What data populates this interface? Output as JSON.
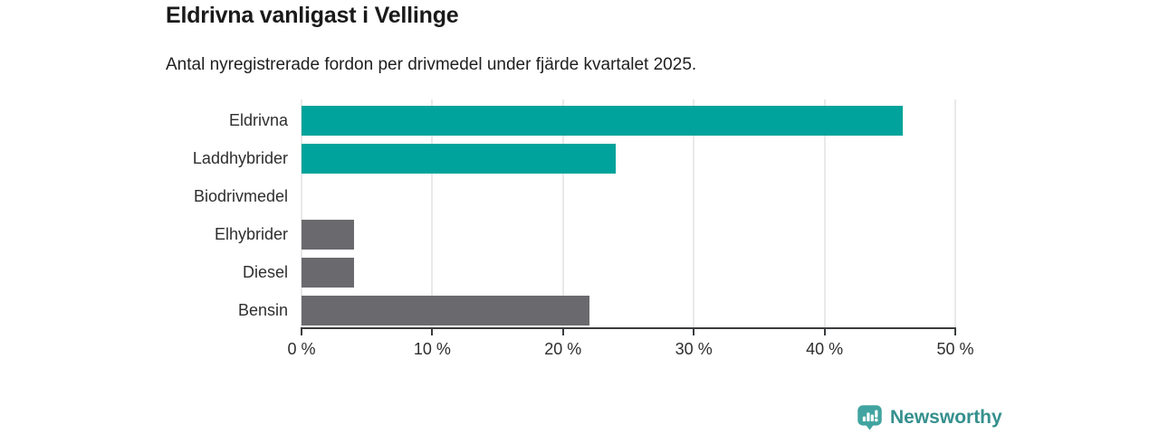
{
  "chart_data": {
    "type": "bar",
    "orientation": "horizontal",
    "title": "Eldrivna vanligast i Vellinge",
    "subtitle": "Antal nyregistrerade fordon per drivmedel under fjärde kvartalet 2025.",
    "categories": [
      "Eldrivna",
      "Laddhybrider",
      "Biodrivmedel",
      "Elhybrider",
      "Diesel",
      "Bensin"
    ],
    "values": [
      46,
      24,
      0,
      4,
      4,
      22
    ],
    "unit": "%",
    "bar_colors": [
      "#00a39b",
      "#00a39b",
      "#00a39b",
      "#6a6a6e",
      "#6a6a6e",
      "#6a6a6e"
    ],
    "xlim": [
      0,
      50
    ],
    "x_ticks": [
      0,
      10,
      20,
      30,
      40,
      50
    ],
    "x_tick_labels": [
      "0 %",
      "10 %",
      "20 %",
      "30 %",
      "40 %",
      "50 %"
    ],
    "grid": "vertical-gridlines-only",
    "legend": "none"
  },
  "colors": {
    "accent_teal": "#00a39b",
    "neutral_gray": "#6a6a6e",
    "axis": "#3a3c3e",
    "gridline": "#e9e9e9",
    "title_text": "#1a1a1a",
    "label_text": "#2e2e2e"
  },
  "branding": {
    "logo_text": "Newsworthy",
    "logo_text_color": "#35908e",
    "logo_icon_color": "#41a4a0"
  }
}
